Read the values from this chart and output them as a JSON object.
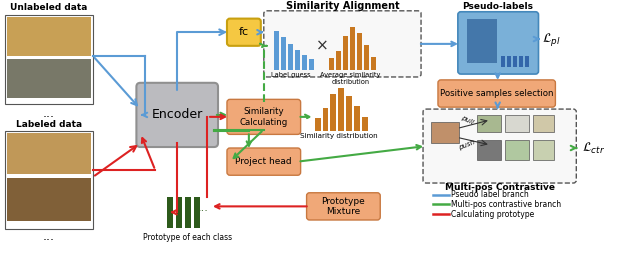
{
  "bg_color": "#ffffff",
  "unlabeled_text": "Unlabeled data",
  "labeled_text": "Labeled data",
  "encoder_text": "Encoder",
  "fc_text": "fc",
  "similarity_calc_text": "Similarity\nCalculating",
  "project_head_text": "Project head",
  "prototype_mix_text": "Prototype\nMixture",
  "similarity_align_text": "Similarity Alignment",
  "pseudo_labels_text": "Pseudo-labels",
  "positive_sel_text": "Positive samples selection",
  "multipos_text": "Multi-pos Contrastive",
  "prototype_text": "Prototype of each class",
  "label_guess_text": "Label guess",
  "avg_sim_text": "Average similarity\ndistribution",
  "sim_dist_text": "Similarity distribution",
  "Lpl_text": "$\\mathcal{L}_{pl}$",
  "Lctr_text": "$\\mathcal{L}_{ctr}$",
  "pull_text": "pull",
  "push_text": "push",
  "legend_blue": "Pseudo label branch",
  "legend_green": "Multi-pos contrastive branch",
  "legend_red": "Calculating prototype",
  "color_blue": "#5b9bd5",
  "color_green": "#44aa44",
  "color_red": "#dd2222",
  "color_orange_box": "#f0a878",
  "color_fc_box": "#f5c842",
  "color_encoder": "#bbbbbf",
  "color_dark_green": "#2d5a1b",
  "color_bar_blue": "#5b9bd5",
  "color_bar_orange": "#c87820",
  "color_pseudo_blue": "#7ab0d8",
  "color_pseudo_dark": "#3b6ea8"
}
